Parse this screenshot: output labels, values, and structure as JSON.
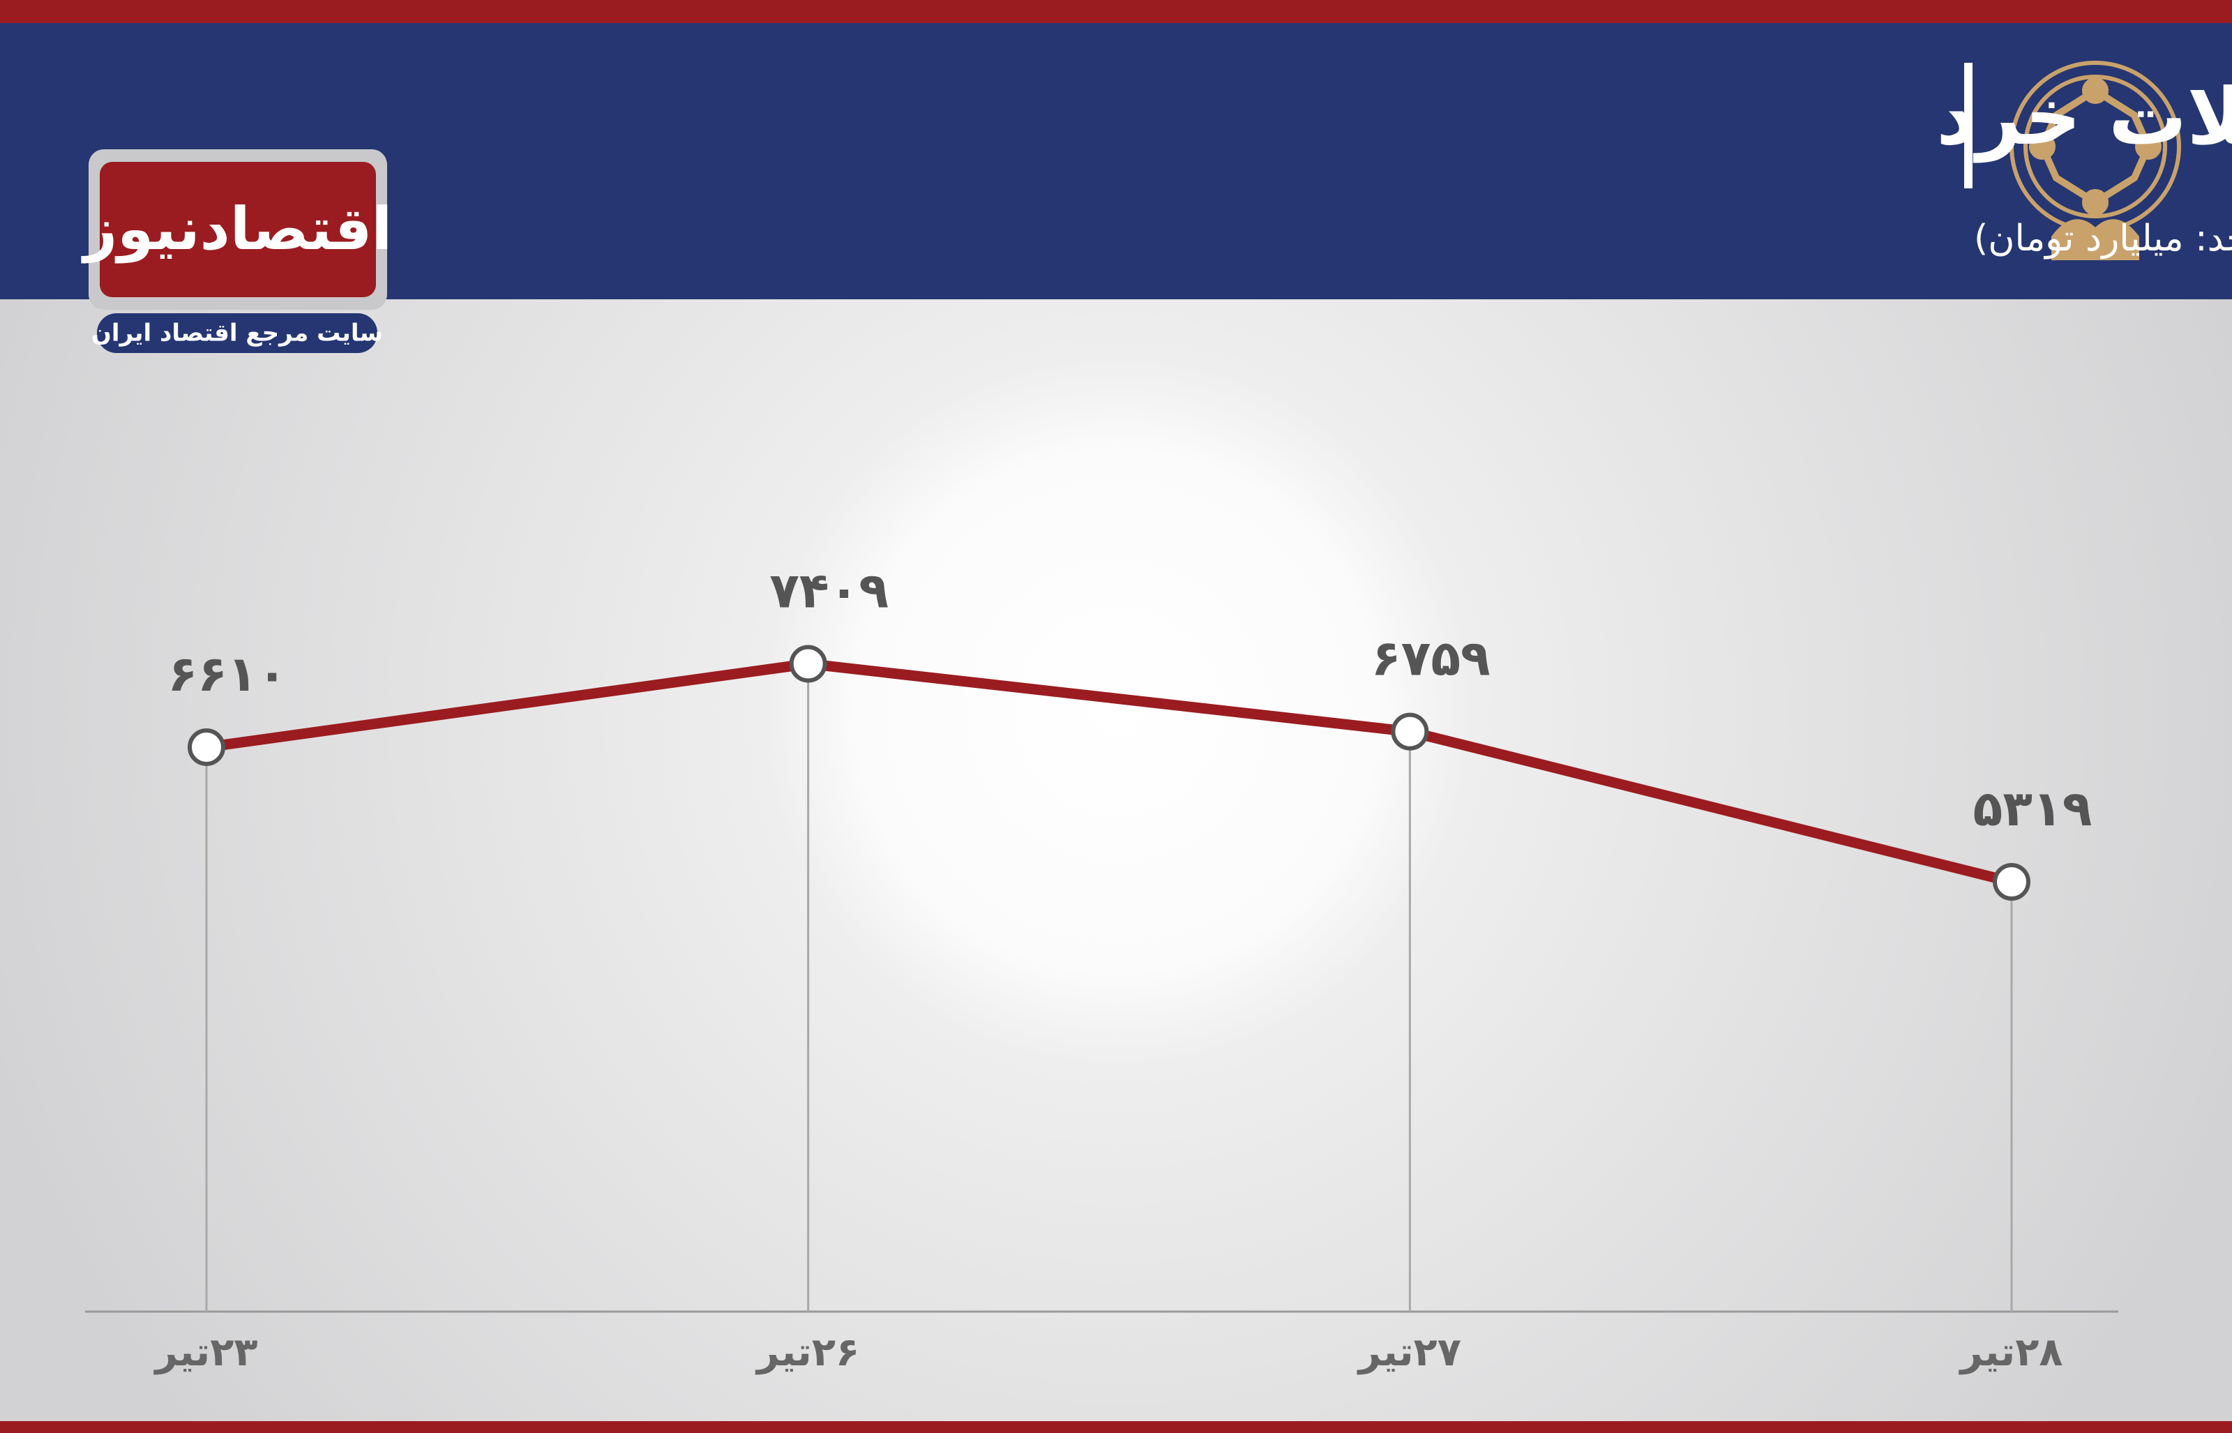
{
  "logo": {
    "name": "اقتصادنیوز",
    "tagline": "سایت مرجع اقتصاد ایران"
  },
  "chart_data": {
    "type": "line",
    "title": "روند هفته ارزش معاملات خرد",
    "subtitle": "(واحد: میلیارد تومان)",
    "categories": [
      "۲۳تیر",
      "۲۶تیر",
      "۲۷تیر",
      "۲۸تیر"
    ],
    "values": [
      6610,
      7409,
      6759,
      5319
    ],
    "value_labels": [
      "۶۶۱۰",
      "۷۴۰۹",
      "۶۷۵۹",
      "۵۳۱۹"
    ],
    "color": "#9b1c20",
    "ylim": [
      1200,
      10000
    ]
  }
}
